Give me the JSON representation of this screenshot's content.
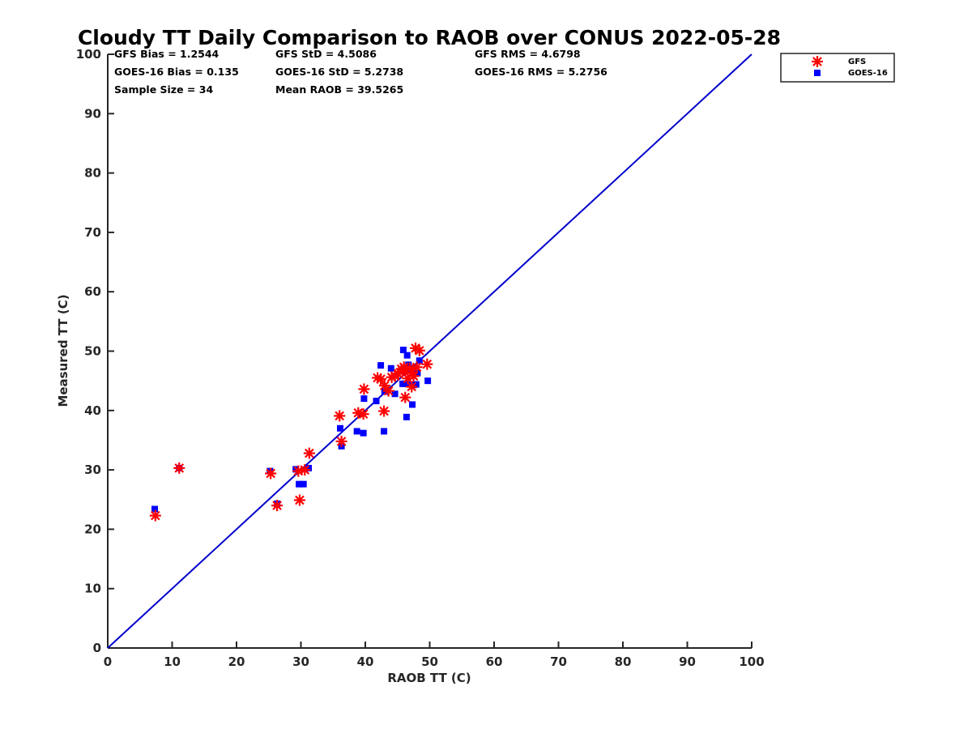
{
  "chart_data": {
    "type": "scatter",
    "title": "Cloudy TT Daily Comparison to RAOB over CONUS 2022-05-28",
    "xlabel": "RAOB TT (C)",
    "ylabel": "Measured TT (C)",
    "xlim": [
      0,
      100
    ],
    "ylim": [
      0,
      100
    ],
    "xticks": [
      0,
      10,
      20,
      30,
      40,
      50,
      60,
      70,
      80,
      90,
      100
    ],
    "yticks": [
      0,
      10,
      20,
      30,
      40,
      50,
      60,
      70,
      80,
      90,
      100
    ],
    "grid": false,
    "legend_position": "top-right, outside plot",
    "stats": [
      [
        "GFS Bias = 1.2544",
        "GFS StD = 4.5086",
        "GFS RMS = 4.6798"
      ],
      [
        "GOES-16 Bias = 0.135",
        "GOES-16 StD = 5.2738",
        "GOES-16 RMS = 5.2756"
      ],
      [
        "Sample Size = 34",
        "Mean RAOB = 39.5265",
        ""
      ]
    ],
    "reference_line": {
      "x": [
        0,
        100
      ],
      "y": [
        0,
        100
      ],
      "color": "#0000cc"
    },
    "series": [
      {
        "name": "GFS",
        "marker": "asterisk",
        "color": "#ff0000",
        "x": [
          7.4,
          11.1,
          25.3,
          26.3,
          29.6,
          29.8,
          30.6,
          31.3,
          36.0,
          36.3,
          38.9,
          39.7,
          39.8,
          41.9,
          42.4,
          42.9,
          43.0,
          43.6,
          44.1,
          44.6,
          45.1,
          45.6,
          46.0,
          46.2,
          46.6,
          46.9,
          47.2,
          47.5,
          47.8,
          48.0,
          48.4,
          49.6,
          47.3,
          45.8
        ],
        "y": [
          22.3,
          30.3,
          29.4,
          24.0,
          29.8,
          24.9,
          30.0,
          32.8,
          39.1,
          34.8,
          39.6,
          39.4,
          43.6,
          45.5,
          45.3,
          39.9,
          44.2,
          43.3,
          45.6,
          45.8,
          46.2,
          47.0,
          47.3,
          42.2,
          45.4,
          47.1,
          44.0,
          45.8,
          50.5,
          47.3,
          50.1,
          47.8,
          46.4,
          46.7
        ]
      },
      {
        "name": "GOES-16",
        "marker": "square",
        "color": "#0000ff",
        "x": [
          7.3,
          11.1,
          25.2,
          26.3,
          29.2,
          29.7,
          30.4,
          31.2,
          36.1,
          36.3,
          38.7,
          39.7,
          39.8,
          41.7,
          42.4,
          42.9,
          43.0,
          44.0,
          44.6,
          45.6,
          45.9,
          46.2,
          46.4,
          46.5,
          46.7,
          47.0,
          47.3,
          47.5,
          47.9,
          48.1,
          48.4,
          49.7,
          46.3,
          45.8
        ],
        "y": [
          23.4,
          30.3,
          29.8,
          24.3,
          30.1,
          27.6,
          27.6,
          30.3,
          37.0,
          34.0,
          36.5,
          36.2,
          42.0,
          41.6,
          47.6,
          36.5,
          43.2,
          47.1,
          42.8,
          46.6,
          50.2,
          44.5,
          38.9,
          49.3,
          47.7,
          44.4,
          41.0,
          44.3,
          44.4,
          46.3,
          48.4,
          45.0,
          46.8,
          44.5
        ]
      }
    ]
  }
}
